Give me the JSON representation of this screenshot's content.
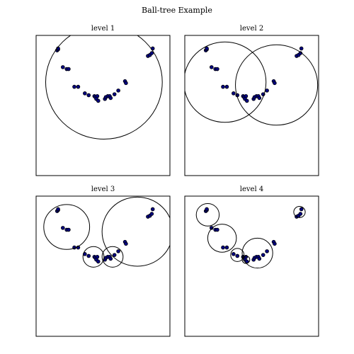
{
  "figure_title": "Ball-tree Example",
  "chart_data": {
    "type": "scatter",
    "title": "Ball-tree Example",
    "point_color": "#000080",
    "point_edge_color": "#000000",
    "circle_color": "#000000",
    "grid": false,
    "xlim": [
      -0.2,
      1.2
    ],
    "ylim": [
      -0.6,
      0.9
    ],
    "points": [
      [
        0.02,
        0.74
      ],
      [
        0.03,
        0.75
      ],
      [
        0.03,
        0.76
      ],
      [
        0.08,
        0.56
      ],
      [
        0.12,
        0.54
      ],
      [
        0.14,
        0.54
      ],
      [
        0.2,
        0.35
      ],
      [
        0.24,
        0.35
      ],
      [
        0.31,
        0.28
      ],
      [
        0.35,
        0.26
      ],
      [
        0.41,
        0.25
      ],
      [
        0.42,
        0.24
      ],
      [
        0.44,
        0.25
      ],
      [
        0.43,
        0.22
      ],
      [
        0.45,
        0.2
      ],
      [
        0.52,
        0.22
      ],
      [
        0.53,
        0.24
      ],
      [
        0.55,
        0.25
      ],
      [
        0.57,
        0.25
      ],
      [
        0.58,
        0.23
      ],
      [
        0.62,
        0.27
      ],
      [
        0.66,
        0.31
      ],
      [
        0.73,
        0.41
      ],
      [
        0.74,
        0.39
      ],
      [
        0.97,
        0.68
      ],
      [
        0.99,
        0.69
      ],
      [
        1.01,
        0.71
      ],
      [
        1.02,
        0.76
      ]
    ],
    "panels": [
      {
        "title": "level 1",
        "circles": [
          {
            "cx": 0.51,
            "cy": 0.4,
            "r": 0.61
          }
        ]
      },
      {
        "title": "level 2",
        "circles": [
          {
            "cx": 0.22,
            "cy": 0.4,
            "r": 0.43
          },
          {
            "cx": 0.76,
            "cy": 0.37,
            "r": 0.43
          }
        ]
      },
      {
        "title": "level 3",
        "circles": [
          {
            "cx": 0.12,
            "cy": 0.57,
            "r": 0.24
          },
          {
            "cx": 0.86,
            "cy": 0.52,
            "r": 0.37
          },
          {
            "cx": 0.4,
            "cy": 0.25,
            "r": 0.11
          },
          {
            "cx": 0.6,
            "cy": 0.25,
            "r": 0.11
          }
        ]
      },
      {
        "title": "level 4",
        "circles": [
          {
            "cx": 0.04,
            "cy": 0.7,
            "r": 0.12
          },
          {
            "cx": 0.19,
            "cy": 0.45,
            "r": 0.15
          },
          {
            "cx": 0.56,
            "cy": 0.29,
            "r": 0.16
          },
          {
            "cx": 1.0,
            "cy": 0.73,
            "r": 0.06
          },
          {
            "cx": 0.35,
            "cy": 0.27,
            "r": 0.07
          },
          {
            "cx": 0.44,
            "cy": 0.22,
            "r": 0.04
          }
        ]
      }
    ]
  }
}
